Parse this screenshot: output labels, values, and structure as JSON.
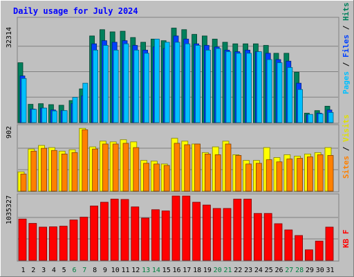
{
  "chart_data": [
    {
      "type": "bar",
      "title": "Daily usage for July 2024",
      "categories": [
        "1",
        "2",
        "3",
        "4",
        "5",
        "6",
        "7",
        "8",
        "9",
        "10",
        "11",
        "12",
        "13",
        "14",
        "15",
        "16",
        "17",
        "18",
        "19",
        "20",
        "21",
        "22",
        "23",
        "24",
        "25",
        "26",
        "27",
        "28",
        "29",
        "30",
        "31"
      ],
      "weekend_days": [
        "6",
        "7",
        "13",
        "14",
        "20",
        "21",
        "27",
        "28"
      ],
      "ymax_label": "32314",
      "ymax": 32314,
      "right_legend": [
        "Hits",
        "Files",
        "Pages"
      ],
      "series": [
        {
          "name": "Hits",
          "color": "#00805c",
          "values": [
            19000,
            5800,
            6000,
            5700,
            5500,
            7000,
            10700,
            27500,
            29500,
            28800,
            29000,
            27000,
            25500,
            26500,
            26000,
            30000,
            29500,
            28000,
            27500,
            26500,
            25500,
            25000,
            25000,
            25000,
            24500,
            22000,
            22000,
            16000,
            3000,
            3800,
            5200
          ]
        },
        {
          "name": "Files",
          "color": "#0040ff",
          "values": [
            14800,
            4300,
            4600,
            4000,
            3800,
            6000,
            8500,
            25000,
            26000,
            25500,
            26000,
            24500,
            23000,
            24000,
            23500,
            27500,
            26500,
            25000,
            24500,
            24000,
            23000,
            22500,
            23000,
            22500,
            22000,
            20000,
            19500,
            12500,
            2500,
            3000,
            4000
          ]
        },
        {
          "name": "Pages",
          "color": "#00c0ff",
          "values": [
            14000,
            4200,
            4600,
            3700,
            3800,
            8000,
            12500,
            23000,
            24500,
            23000,
            25000,
            23000,
            22000,
            26500,
            25500,
            25500,
            25000,
            24500,
            23000,
            23500,
            22500,
            22000,
            22000,
            22500,
            20000,
            19000,
            17500,
            10500,
            2600,
            2800,
            3200
          ]
        }
      ]
    },
    {
      "type": "bar",
      "ymax_label": "902",
      "ymax": 902,
      "right_legend": [
        "Visits",
        "Sites"
      ],
      "series": [
        {
          "name": "Visits",
          "color": "#ffff00",
          "values": [
            270,
            590,
            640,
            610,
            560,
            580,
            880,
            620,
            700,
            690,
            720,
            690,
            430,
            420,
            380,
            740,
            700,
            660,
            540,
            620,
            700,
            510,
            430,
            430,
            610,
            470,
            510,
            490,
            520,
            540,
            610
          ]
        },
        {
          "name": "Sites",
          "color": "#ff8000",
          "values": [
            240,
            560,
            600,
            570,
            520,
            540,
            860,
            590,
            660,
            660,
            670,
            610,
            390,
            380,
            360,
            670,
            650,
            660,
            520,
            510,
            660,
            500,
            380,
            390,
            440,
            410,
            450,
            460,
            480,
            510,
            500
          ]
        }
      ]
    },
    {
      "type": "bar",
      "ymax_label": "1035327",
      "ymax": 1035327,
      "right_legend": [
        "KB F"
      ],
      "series": [
        {
          "name": "KB F",
          "color": "#ff0000",
          "values": [
            665000,
            595000,
            535000,
            540000,
            550000,
            650000,
            695000,
            875000,
            935000,
            985000,
            980000,
            860000,
            680000,
            815000,
            795000,
            1035327,
            1035000,
            935000,
            890000,
            835000,
            835000,
            985000,
            985000,
            755000,
            755000,
            590000,
            490000,
            400000,
            170000,
            310000,
            535000
          ]
        }
      ]
    }
  ]
}
